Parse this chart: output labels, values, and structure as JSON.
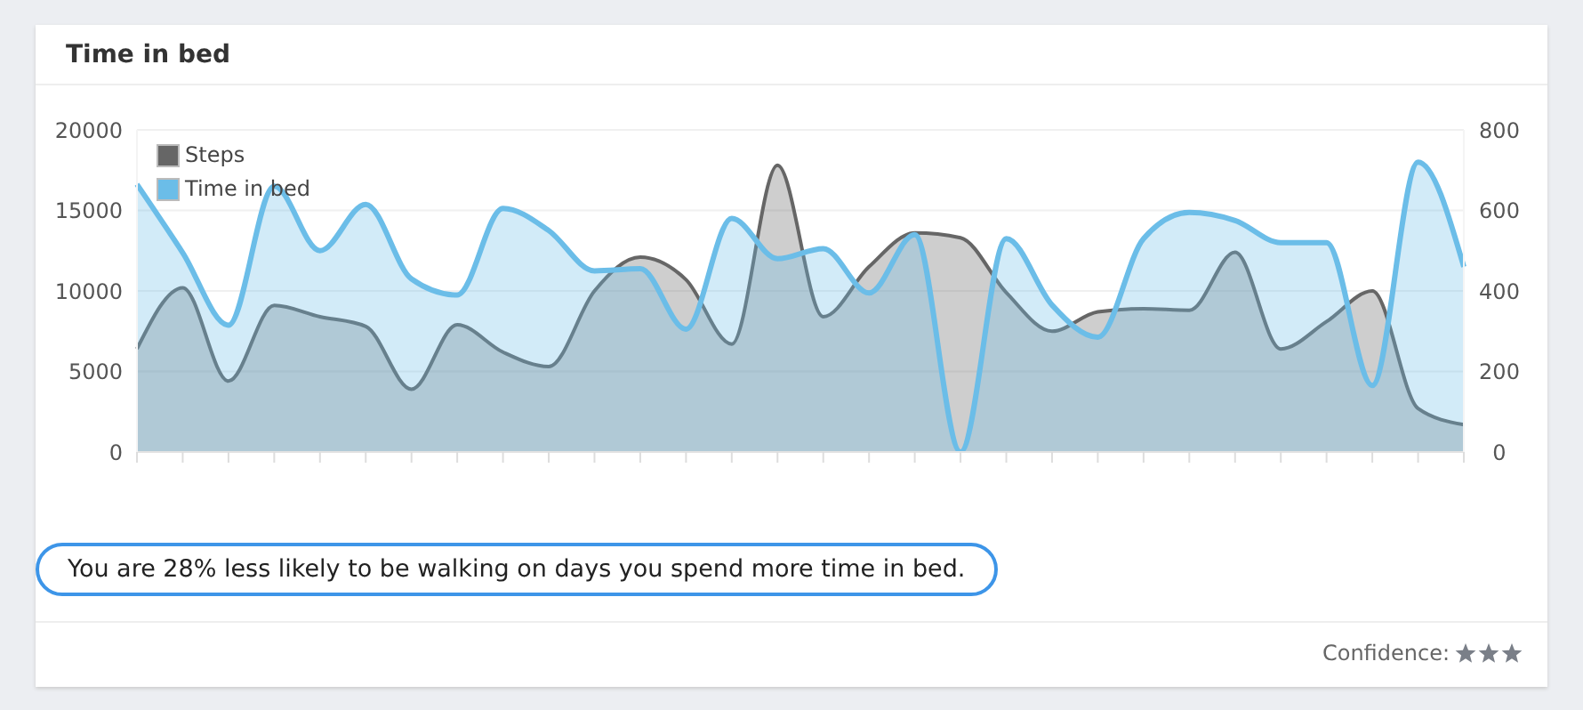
{
  "chart_data": {
    "type": "area",
    "title": "Time in bed",
    "categories": [
      null,
      null,
      null,
      null,
      null,
      null,
      null,
      null,
      null,
      null,
      null,
      null,
      null,
      null,
      null,
      null,
      null,
      null,
      null,
      null,
      null,
      null,
      null,
      null,
      null,
      null,
      null,
      null,
      null,
      null
    ],
    "series": [
      {
        "name": "Steps",
        "color": "#666666",
        "values": [
          6400,
          10200,
          4400,
          9100,
          8400,
          7800,
          3900,
          7900,
          6200,
          5300,
          10000,
          12100,
          10700,
          6700,
          17800,
          8400,
          11500,
          13600,
          13300,
          9900,
          7500,
          8700,
          8900,
          8800,
          12400,
          6400,
          8100,
          10000,
          2700,
          1700
        ]
      },
      {
        "name": "Time in bed",
        "color": "#6bbde8",
        "axis": "y2",
        "values": [
          665,
          495,
          315,
          660,
          500,
          615,
          430,
          390,
          605,
          550,
          450,
          455,
          305,
          580,
          480,
          505,
          395,
          540,
          0,
          530,
          365,
          285,
          530,
          595,
          575,
          520,
          520,
          165,
          720,
          460
        ]
      }
    ],
    "ylim": [
      0,
      20000
    ],
    "yticks": [
      0,
      5000,
      10000,
      15000,
      20000
    ],
    "y2lim": [
      0,
      800
    ],
    "y2ticks": [
      0,
      200,
      400,
      600,
      800
    ],
    "grid": "y",
    "legend": "top left",
    "annotations": [
      "You are 28% less likely to be walking on days you spend more time in bed.",
      "Confidence:"
    ]
  }
}
